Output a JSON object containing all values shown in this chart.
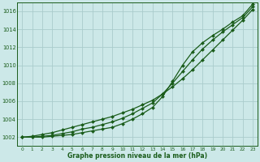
{
  "xlabel": "Graphe pression niveau de la mer (hPa)",
  "background_color": "#cce8e8",
  "grid_color": "#aacccc",
  "line_color": "#1a5c1a",
  "xlim": [
    -0.5,
    23.5
  ],
  "ylim": [
    1001.0,
    1017.0
  ],
  "yticks": [
    1002,
    1004,
    1006,
    1008,
    1010,
    1012,
    1014,
    1016
  ],
  "x_ticks": [
    0,
    1,
    2,
    3,
    4,
    5,
    6,
    7,
    8,
    9,
    10,
    11,
    12,
    13,
    14,
    15,
    16,
    17,
    18,
    19,
    20,
    21,
    22,
    23
  ],
  "series": [
    [
      1002.0,
      1002.1,
      1002.3,
      1002.5,
      1002.8,
      1003.1,
      1003.4,
      1003.7,
      1004.0,
      1004.3,
      1004.7,
      1005.1,
      1005.6,
      1006.1,
      1006.8,
      1007.6,
      1008.5,
      1009.5,
      1010.6,
      1011.7,
      1012.8,
      1013.9,
      1015.0,
      1016.2
    ],
    [
      1002.0,
      1002.0,
      1002.1,
      1002.2,
      1002.4,
      1002.6,
      1002.9,
      1003.1,
      1003.4,
      1003.7,
      1004.1,
      1004.6,
      1005.2,
      1005.8,
      1006.8,
      1008.0,
      1009.3,
      1010.6,
      1011.8,
      1012.8,
      1013.7,
      1014.5,
      1015.3,
      1016.5
    ],
    [
      1002.0,
      1002.0,
      1002.0,
      1002.1,
      1002.2,
      1002.3,
      1002.5,
      1002.7,
      1002.9,
      1003.1,
      1003.5,
      1004.0,
      1004.6,
      1005.3,
      1006.5,
      1008.2,
      1010.0,
      1011.5,
      1012.5,
      1013.3,
      1014.0,
      1014.8,
      1015.5,
      1016.8
    ]
  ]
}
